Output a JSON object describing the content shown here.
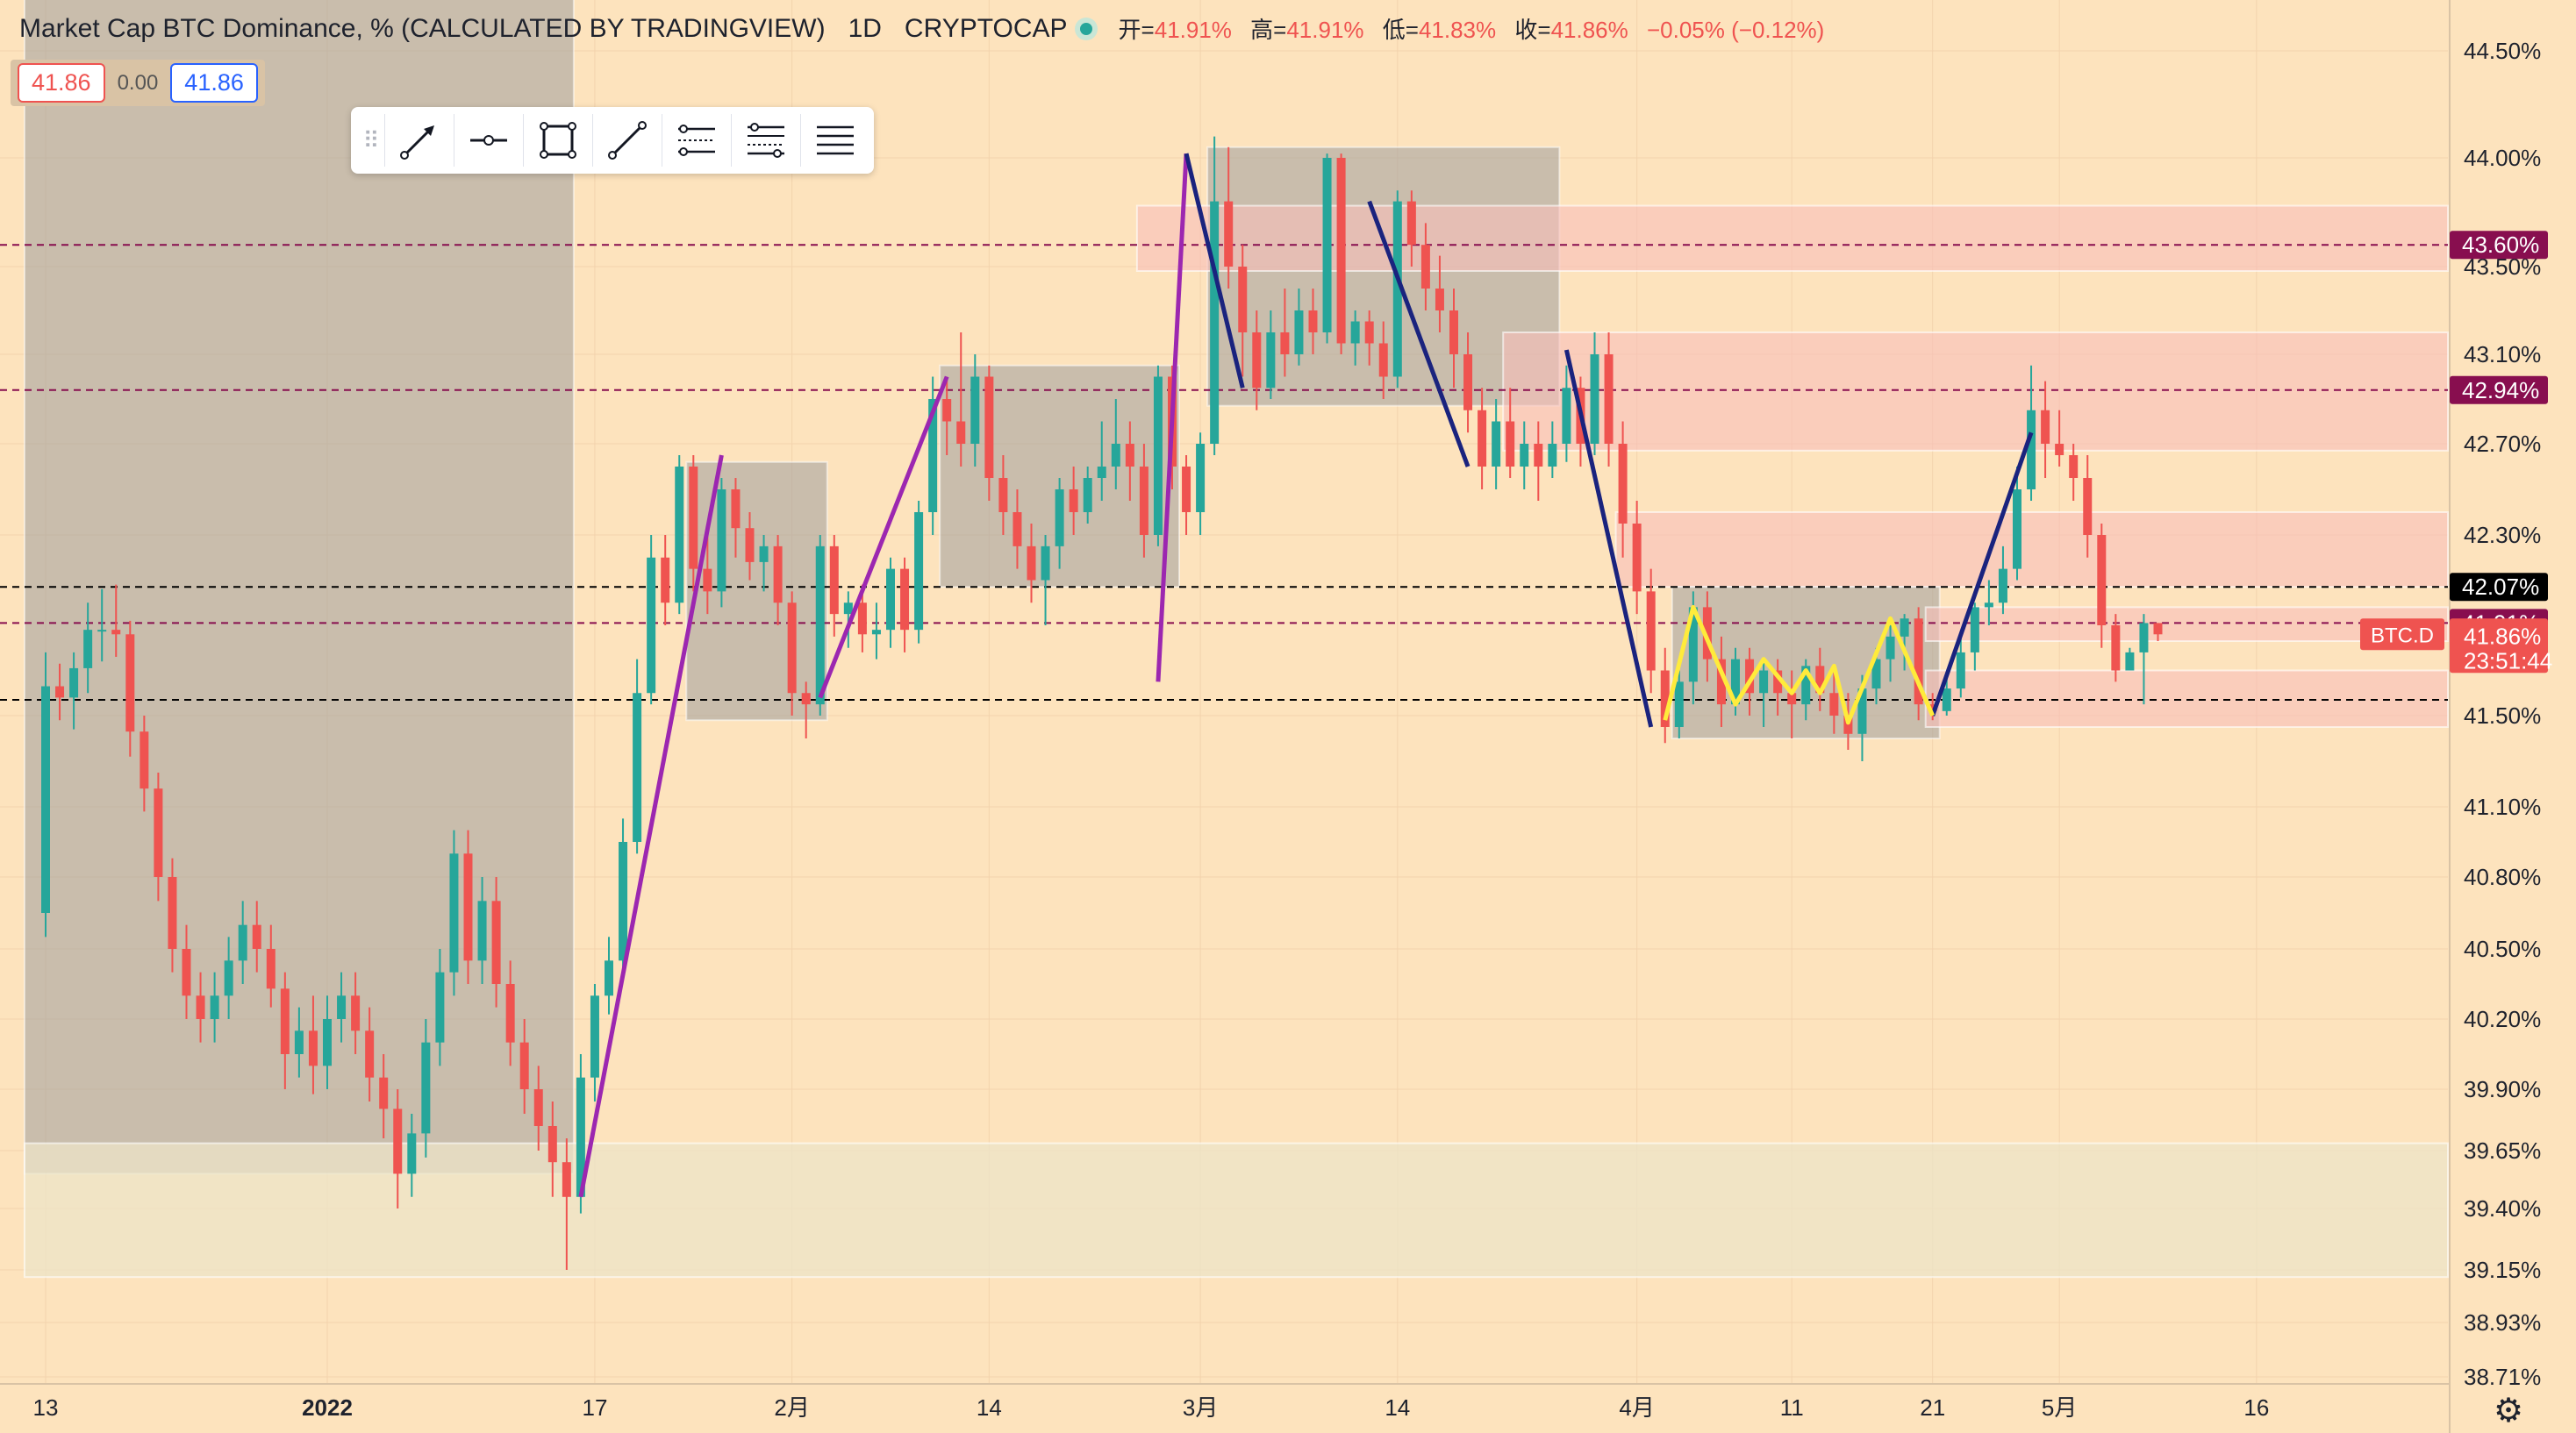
{
  "header": {
    "symbol_title": "Market Cap BTC Dominance, % (CALCULATED BY TRADINGVIEW)",
    "interval": "1D",
    "exchange": "CRYPTOCAP",
    "ohlc": [
      {
        "label": "开=",
        "value": "41.91%"
      },
      {
        "label": "高=",
        "value": "41.91%"
      },
      {
        "label": "低=",
        "value": "41.83%"
      },
      {
        "label": "收=",
        "value": "41.86%"
      }
    ],
    "change": "−0.05% (−0.12%)"
  },
  "price_box": {
    "sell": "41.86",
    "spread": "0.00",
    "buy": "41.86"
  },
  "toolbar": {
    "grip_icon": "drag-handle-icon",
    "tools": [
      "arrow-tool-icon",
      "horizontal-ray-icon",
      "rectangle-tool-icon",
      "trend-line-icon",
      "parallel-channel-icon",
      "fib-retracement-icon",
      "horizontal-lines-icon"
    ]
  },
  "colors": {
    "background": "#fde3bd",
    "up": "#26a69a",
    "down": "#ef5350",
    "purple_line": "#9c27b0",
    "blue_line": "#1a237e",
    "yellow_line": "#ffeb3b",
    "zone_gray": "#9e9e9e",
    "zone_red": "#f8c8c4",
    "zone_pale": "#f2e5c2"
  },
  "chart_data": {
    "type": "candlestick",
    "symbol_label": "BTC.D",
    "last_price": "41.86%",
    "countdown": "23:51:44",
    "y_tick_labels": [
      "44.50%",
      "44.00%",
      "43.50%",
      "43.10%",
      "42.70%",
      "42.30%",
      "41.50%",
      "41.10%",
      "40.80%",
      "40.50%",
      "40.20%",
      "39.90%",
      "39.65%",
      "39.40%",
      "39.15%",
      "38.93%",
      "38.71%"
    ],
    "y_tick_values": [
      44.5,
      44.0,
      43.5,
      43.1,
      42.7,
      42.3,
      41.5,
      41.1,
      40.8,
      40.5,
      40.2,
      39.9,
      39.65,
      39.4,
      39.15,
      38.93,
      38.71
    ],
    "x_tick_labels": [
      "13",
      "2022",
      "17",
      "2月",
      "14",
      "3月",
      "14",
      "4月",
      "11",
      "21",
      "5月",
      "16"
    ],
    "x_tick_index": [
      0,
      20,
      39,
      53,
      67,
      82,
      96,
      113,
      124,
      134,
      143,
      157
    ],
    "price_lines": [
      {
        "label": "43.60%",
        "value": 43.6,
        "style": "dashed",
        "color": "#880e4f"
      },
      {
        "label": "42.94%",
        "value": 42.94,
        "style": "dashed",
        "color": "#880e4f"
      },
      {
        "label": "42.07%",
        "value": 42.07,
        "style": "dashed",
        "color": "#000000"
      },
      {
        "label": "41.91%",
        "value": 41.91,
        "style": "dashed",
        "color": "#880e4f"
      },
      {
        "label": "",
        "value": 41.57,
        "style": "dashed",
        "color": "#000000"
      }
    ],
    "zones": [
      {
        "kind": "gray",
        "i0": -1,
        "i1": 37,
        "hi": 45.0,
        "lo": 39.55
      },
      {
        "kind": "pale",
        "i0": -1,
        "i1": 180,
        "hi": 39.68,
        "lo": 39.12
      },
      {
        "kind": "gray",
        "i0": 46,
        "i1": 55,
        "hi": 42.62,
        "lo": 41.48
      },
      {
        "kind": "gray",
        "i0": 64,
        "i1": 80,
        "hi": 43.05,
        "lo": 42.07
      },
      {
        "kind": "gray",
        "i0": 83,
        "i1": 107,
        "hi": 44.05,
        "lo": 42.87
      },
      {
        "kind": "red",
        "i0": 78,
        "i1": 180,
        "hi": 43.78,
        "lo": 43.48
      },
      {
        "kind": "red",
        "i0": 104,
        "i1": 180,
        "hi": 43.2,
        "lo": 42.67
      },
      {
        "kind": "red",
        "i0": 112,
        "i1": 180,
        "hi": 42.4,
        "lo": 42.07
      },
      {
        "kind": "gray",
        "i0": 116,
        "i1": 134,
        "hi": 42.07,
        "lo": 41.4
      },
      {
        "kind": "red",
        "i0": 134,
        "i1": 180,
        "hi": 41.7,
        "lo": 41.45
      },
      {
        "kind": "red",
        "i0": 134,
        "i1": 180,
        "hi": 41.98,
        "lo": 41.83
      }
    ],
    "drawn_lines": [
      {
        "color": "purple",
        "points": [
          [
            38,
            39.45
          ],
          [
            48,
            42.65
          ]
        ]
      },
      {
        "color": "purple",
        "points": [
          [
            55,
            41.58
          ],
          [
            64,
            43.0
          ]
        ]
      },
      {
        "color": "purple",
        "points": [
          [
            79,
            41.65
          ],
          [
            81,
            44.02
          ]
        ]
      },
      {
        "color": "blue",
        "points": [
          [
            81,
            44.02
          ],
          [
            85,
            42.95
          ]
        ]
      },
      {
        "color": "blue",
        "points": [
          [
            94,
            43.8
          ],
          [
            101,
            42.6
          ]
        ]
      },
      {
        "color": "blue",
        "points": [
          [
            108,
            43.12
          ],
          [
            114,
            41.45
          ]
        ]
      },
      {
        "color": "blue",
        "points": [
          [
            134,
            41.5
          ],
          [
            141,
            42.75
          ]
        ]
      },
      {
        "color": "yellow",
        "points": [
          [
            115,
            41.48
          ],
          [
            117,
            41.98
          ],
          [
            120,
            41.55
          ],
          [
            122,
            41.75
          ],
          [
            124,
            41.6
          ],
          [
            125,
            41.7
          ],
          [
            126,
            41.6
          ],
          [
            127,
            41.72
          ],
          [
            128,
            41.47
          ],
          [
            131,
            41.93
          ],
          [
            134,
            41.5
          ]
        ]
      }
    ],
    "candles": [
      [
        40.65,
        41.63,
        41.78,
        40.55
      ],
      [
        41.63,
        41.58,
        41.73,
        41.48
      ],
      [
        41.58,
        41.71,
        41.78,
        41.44
      ],
      [
        41.71,
        41.88,
        42.0,
        41.6
      ],
      [
        41.88,
        41.88,
        42.06,
        41.74
      ],
      [
        41.88,
        41.86,
        42.08,
        41.76
      ],
      [
        41.86,
        41.43,
        41.92,
        41.32
      ],
      [
        41.43,
        41.18,
        41.5,
        41.08
      ],
      [
        41.18,
        40.8,
        41.25,
        40.7
      ],
      [
        40.8,
        40.5,
        40.88,
        40.4
      ],
      [
        40.5,
        40.3,
        40.6,
        40.2
      ],
      [
        40.3,
        40.2,
        40.4,
        40.1
      ],
      [
        40.2,
        40.3,
        40.4,
        40.1
      ],
      [
        40.3,
        40.45,
        40.55,
        40.2
      ],
      [
        40.45,
        40.6,
        40.7,
        40.35
      ],
      [
        40.6,
        40.5,
        40.7,
        40.4
      ],
      [
        40.5,
        40.33,
        40.6,
        40.25
      ],
      [
        40.33,
        40.05,
        40.4,
        39.9
      ],
      [
        40.05,
        40.15,
        40.25,
        39.95
      ],
      [
        40.15,
        40.0,
        40.3,
        39.88
      ],
      [
        40.0,
        40.2,
        40.3,
        39.9
      ],
      [
        40.2,
        40.3,
        40.4,
        40.1
      ],
      [
        40.3,
        40.15,
        40.4,
        40.05
      ],
      [
        40.15,
        39.95,
        40.25,
        39.85
      ],
      [
        39.95,
        39.82,
        40.05,
        39.7
      ],
      [
        39.82,
        39.55,
        39.9,
        39.4
      ],
      [
        39.55,
        39.72,
        39.8,
        39.45
      ],
      [
        39.72,
        40.1,
        40.2,
        39.62
      ],
      [
        40.1,
        40.4,
        40.5,
        40.0
      ],
      [
        40.4,
        40.9,
        41.0,
        40.3
      ],
      [
        40.9,
        40.45,
        41.0,
        40.35
      ],
      [
        40.45,
        40.7,
        40.8,
        40.35
      ],
      [
        40.7,
        40.35,
        40.8,
        40.25
      ],
      [
        40.35,
        40.1,
        40.45,
        40.0
      ],
      [
        40.1,
        39.9,
        40.2,
        39.8
      ],
      [
        39.9,
        39.75,
        40.0,
        39.65
      ],
      [
        39.75,
        39.6,
        39.85,
        39.45
      ],
      [
        39.6,
        39.45,
        39.7,
        39.15
      ],
      [
        39.45,
        39.95,
        40.05,
        39.38
      ],
      [
        39.95,
        40.3,
        40.35,
        39.85
      ],
      [
        40.3,
        40.45,
        40.55,
        40.22
      ],
      [
        40.45,
        40.95,
        41.05,
        40.4
      ],
      [
        40.95,
        41.6,
        41.75,
        40.9
      ],
      [
        41.6,
        42.2,
        42.3,
        41.55
      ],
      [
        42.2,
        42.0,
        42.3,
        41.9
      ],
      [
        42.0,
        42.6,
        42.65,
        41.95
      ],
      [
        42.6,
        42.15,
        42.65,
        42.05
      ],
      [
        42.15,
        42.05,
        42.3,
        41.95
      ],
      [
        42.05,
        42.5,
        42.55,
        41.98
      ],
      [
        42.5,
        42.33,
        42.55,
        42.2
      ],
      [
        42.33,
        42.18,
        42.4,
        42.1
      ],
      [
        42.18,
        42.25,
        42.3,
        42.05
      ],
      [
        42.25,
        42.0,
        42.3,
        41.9
      ],
      [
        42.0,
        41.6,
        42.05,
        41.5
      ],
      [
        41.6,
        41.55,
        41.65,
        41.4
      ],
      [
        41.55,
        42.25,
        42.3,
        41.5
      ],
      [
        42.25,
        41.95,
        42.3,
        41.85
      ],
      [
        41.95,
        42.0,
        42.05,
        41.8
      ],
      [
        42.0,
        41.86,
        42.08,
        41.78
      ],
      [
        41.86,
        41.88,
        42.0,
        41.75
      ],
      [
        41.88,
        42.15,
        42.2,
        41.8
      ],
      [
        42.15,
        41.88,
        42.2,
        41.78
      ],
      [
        41.88,
        42.4,
        42.45,
        41.82
      ],
      [
        42.4,
        42.9,
        43.0,
        42.3
      ],
      [
        42.9,
        42.8,
        43.0,
        42.65
      ],
      [
        42.8,
        42.7,
        43.2,
        42.6
      ],
      [
        42.7,
        43.0,
        43.1,
        42.6
      ],
      [
        43.0,
        42.55,
        43.05,
        42.45
      ],
      [
        42.55,
        42.4,
        42.65,
        42.3
      ],
      [
        42.4,
        42.25,
        42.5,
        42.15
      ],
      [
        42.25,
        42.1,
        42.35,
        42.0
      ],
      [
        42.1,
        42.25,
        42.3,
        41.9
      ],
      [
        42.25,
        42.5,
        42.55,
        42.15
      ],
      [
        42.5,
        42.4,
        42.6,
        42.3
      ],
      [
        42.4,
        42.55,
        42.6,
        42.35
      ],
      [
        42.55,
        42.6,
        42.8,
        42.45
      ],
      [
        42.6,
        42.7,
        42.9,
        42.5
      ],
      [
        42.7,
        42.6,
        42.8,
        42.45
      ],
      [
        42.6,
        42.3,
        42.7,
        42.2
      ],
      [
        42.3,
        43.0,
        43.05,
        42.25
      ],
      [
        43.0,
        42.6,
        43.05,
        42.5
      ],
      [
        42.6,
        42.4,
        42.65,
        42.3
      ],
      [
        42.4,
        42.7,
        42.75,
        42.3
      ],
      [
        42.7,
        43.8,
        44.1,
        42.65
      ],
      [
        43.8,
        43.5,
        44.05,
        43.4
      ],
      [
        43.5,
        43.2,
        43.6,
        43.0
      ],
      [
        43.2,
        42.95,
        43.3,
        42.85
      ],
      [
        42.95,
        43.2,
        43.3,
        42.9
      ],
      [
        43.2,
        43.1,
        43.4,
        43.0
      ],
      [
        43.1,
        43.3,
        43.4,
        43.05
      ],
      [
        43.3,
        43.2,
        43.4,
        43.1
      ],
      [
        43.2,
        44.0,
        44.02,
        43.15
      ],
      [
        44.0,
        43.15,
        44.02,
        43.1
      ],
      [
        43.15,
        43.25,
        43.3,
        43.05
      ],
      [
        43.25,
        43.15,
        43.3,
        43.05
      ],
      [
        43.15,
        43.0,
        43.25,
        42.9
      ],
      [
        43.0,
        43.8,
        43.85,
        42.95
      ],
      [
        43.8,
        43.6,
        43.85,
        43.5
      ],
      [
        43.6,
        43.4,
        43.7,
        43.3
      ],
      [
        43.4,
        43.3,
        43.55,
        43.2
      ],
      [
        43.3,
        43.1,
        43.4,
        42.95
      ],
      [
        43.1,
        42.85,
        43.2,
        42.75
      ],
      [
        42.85,
        42.6,
        42.95,
        42.5
      ],
      [
        42.6,
        42.8,
        42.9,
        42.5
      ],
      [
        42.8,
        42.6,
        42.95,
        42.55
      ],
      [
        42.6,
        42.7,
        42.8,
        42.5
      ],
      [
        42.7,
        42.6,
        42.8,
        42.45
      ],
      [
        42.6,
        42.7,
        42.8,
        42.55
      ],
      [
        42.7,
        42.95,
        43.05,
        42.62
      ],
      [
        42.95,
        42.7,
        43.0,
        42.6
      ],
      [
        42.7,
        43.1,
        43.2,
        42.65
      ],
      [
        43.1,
        42.7,
        43.2,
        42.6
      ],
      [
        42.7,
        42.35,
        42.8,
        42.2
      ],
      [
        42.35,
        42.05,
        42.45,
        41.95
      ],
      [
        42.05,
        41.7,
        42.15,
        41.6
      ],
      [
        41.7,
        41.45,
        41.8,
        41.38
      ],
      [
        41.45,
        41.65,
        41.7,
        41.4
      ],
      [
        41.65,
        41.98,
        42.05,
        41.55
      ],
      [
        41.98,
        41.75,
        42.05,
        41.65
      ],
      [
        41.75,
        41.55,
        41.85,
        41.45
      ],
      [
        41.55,
        41.75,
        41.8,
        41.5
      ],
      [
        41.75,
        41.6,
        41.8,
        41.5
      ],
      [
        41.6,
        41.7,
        41.75,
        41.45
      ],
      [
        41.7,
        41.6,
        41.75,
        41.5
      ],
      [
        41.6,
        41.55,
        41.7,
        41.4
      ],
      [
        41.55,
        41.72,
        41.75,
        41.48
      ],
      [
        41.72,
        41.6,
        41.8,
        41.52
      ],
      [
        41.6,
        41.5,
        41.7,
        41.42
      ],
      [
        41.5,
        41.42,
        41.6,
        41.35
      ],
      [
        41.42,
        41.62,
        41.68,
        41.3
      ],
      [
        41.62,
        41.75,
        41.8,
        41.55
      ],
      [
        41.75,
        41.85,
        41.9,
        41.65
      ],
      [
        41.85,
        41.93,
        41.95,
        41.7
      ],
      [
        41.93,
        41.55,
        41.98,
        41.48
      ],
      [
        41.55,
        41.52,
        41.6,
        41.48
      ],
      [
        41.52,
        41.62,
        41.68,
        41.5
      ],
      [
        41.62,
        41.78,
        41.85,
        41.58
      ],
      [
        41.78,
        41.98,
        42.0,
        41.7
      ],
      [
        41.98,
        42.0,
        42.1,
        41.9
      ],
      [
        42.0,
        42.15,
        42.25,
        41.95
      ],
      [
        42.15,
        42.5,
        42.6,
        42.1
      ],
      [
        42.5,
        42.85,
        43.05,
        42.45
      ],
      [
        42.85,
        42.7,
        42.98,
        42.55
      ],
      [
        42.7,
        42.65,
        42.85,
        42.6
      ],
      [
        42.65,
        42.55,
        42.7,
        42.45
      ],
      [
        42.55,
        42.3,
        42.65,
        42.2
      ],
      [
        42.3,
        41.9,
        42.35,
        41.8
      ],
      [
        41.9,
        41.7,
        41.95,
        41.65
      ],
      [
        41.7,
        41.78,
        41.8,
        41.7
      ],
      [
        41.78,
        41.91,
        41.95,
        41.55
      ],
      [
        41.91,
        41.86,
        41.91,
        41.83
      ]
    ]
  }
}
